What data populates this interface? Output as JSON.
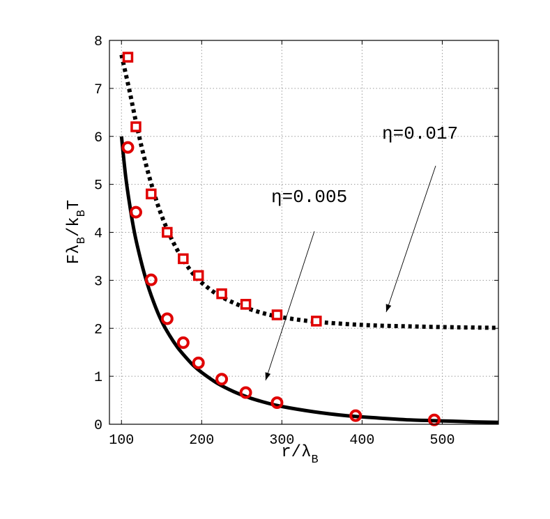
{
  "chart_data": {
    "type": "line",
    "xlabel_main": "r/λ",
    "xlabel_sub": "B",
    "ylabel_parts": [
      "Fλ",
      "B",
      "/k",
      "B",
      "T"
    ],
    "xlim": [
      85,
      570
    ],
    "ylim": [
      0,
      8
    ],
    "xticks": [
      100,
      200,
      300,
      400,
      500
    ],
    "yticks": [
      0,
      1,
      2,
      3,
      4,
      5,
      6,
      7,
      8
    ],
    "grid": true,
    "series": [
      {
        "id": "eta_0_017",
        "style": "dotted",
        "color": "#000000",
        "curve": [
          [
            100,
            7.7
          ],
          [
            110,
            6.95
          ],
          [
            120,
            6.15
          ],
          [
            130,
            5.45
          ],
          [
            140,
            4.85
          ],
          [
            150,
            4.35
          ],
          [
            160,
            3.95
          ],
          [
            170,
            3.62
          ],
          [
            180,
            3.35
          ],
          [
            190,
            3.12
          ],
          [
            200,
            2.95
          ],
          [
            220,
            2.7
          ],
          [
            240,
            2.53
          ],
          [
            260,
            2.4
          ],
          [
            280,
            2.3
          ],
          [
            300,
            2.23
          ],
          [
            340,
            2.14
          ],
          [
            400,
            2.07
          ],
          [
            460,
            2.04
          ],
          [
            520,
            2.02
          ],
          [
            570,
            2.01
          ]
        ],
        "markers": {
          "shape": "square",
          "color": "#e00000",
          "points": [
            [
              108,
              7.65
            ],
            [
              118,
              6.2
            ],
            [
              137,
              4.8
            ],
            [
              157,
              4.0
            ],
            [
              177,
              3.45
            ],
            [
              196,
              3.1
            ],
            [
              225,
              2.72
            ],
            [
              255,
              2.5
            ],
            [
              294,
              2.28
            ],
            [
              343,
              2.15
            ]
          ]
        }
      },
      {
        "id": "eta_0_005",
        "style": "solid",
        "color": "#000000",
        "curve": [
          [
            100,
            6.0
          ],
          [
            105,
            5.2
          ],
          [
            110,
            4.6
          ],
          [
            115,
            4.1
          ],
          [
            120,
            3.7
          ],
          [
            130,
            3.05
          ],
          [
            140,
            2.55
          ],
          [
            150,
            2.15
          ],
          [
            160,
            1.85
          ],
          [
            170,
            1.6
          ],
          [
            180,
            1.4
          ],
          [
            190,
            1.22
          ],
          [
            200,
            1.08
          ],
          [
            220,
            0.85
          ],
          [
            240,
            0.68
          ],
          [
            260,
            0.55
          ],
          [
            280,
            0.45
          ],
          [
            300,
            0.37
          ],
          [
            340,
            0.26
          ],
          [
            380,
            0.18
          ],
          [
            420,
            0.13
          ],
          [
            460,
            0.09
          ],
          [
            500,
            0.07
          ],
          [
            540,
            0.05
          ],
          [
            570,
            0.04
          ]
        ],
        "markers": {
          "shape": "circle",
          "color": "#e00000",
          "points": [
            [
              108,
              5.77
            ],
            [
              118,
              4.42
            ],
            [
              137,
              3.01
            ],
            [
              157,
              2.2
            ],
            [
              177,
              1.7
            ],
            [
              196,
              1.28
            ],
            [
              225,
              0.94
            ],
            [
              255,
              0.66
            ],
            [
              294,
              0.45
            ],
            [
              392,
              0.18
            ],
            [
              490,
              0.09
            ]
          ]
        }
      }
    ],
    "annotations": [
      {
        "id": "eta-017",
        "text": "η=0.017"
      },
      {
        "id": "eta-005",
        "text": "η=0.005"
      }
    ]
  }
}
